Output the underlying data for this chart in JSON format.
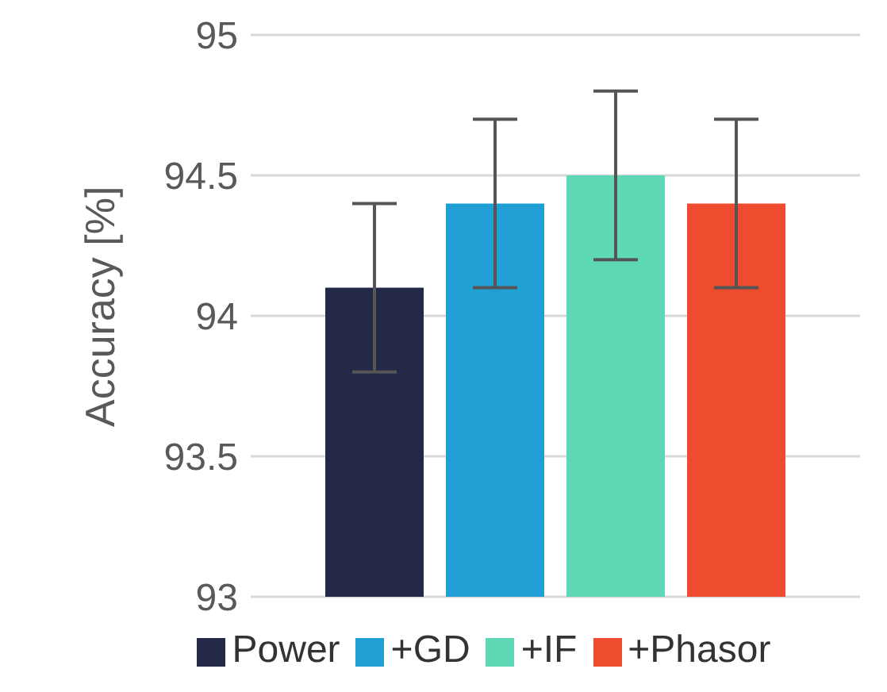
{
  "chart_data": {
    "type": "bar",
    "ylabel": "Accuracy [%]",
    "categories": [
      null
    ],
    "series": [
      {
        "name": "Power",
        "color": "#222845",
        "values": [
          94.1
        ],
        "errors": [
          0.3
        ]
      },
      {
        "name": "+GD",
        "color": "#1f9fd4",
        "values": [
          94.4
        ],
        "errors": [
          0.3
        ]
      },
      {
        "name": "+IF",
        "color": "#5ed8b4",
        "values": [
          94.5
        ],
        "errors": [
          0.3
        ]
      },
      {
        "name": "+Phasor",
        "color": "#ef4b2f",
        "values": [
          94.4
        ],
        "errors": [
          0.3
        ]
      }
    ],
    "ylim": [
      93,
      95
    ],
    "yticks": [
      93,
      93.5,
      94,
      94.5,
      95
    ],
    "grid": "y",
    "legend": "bottom"
  }
}
